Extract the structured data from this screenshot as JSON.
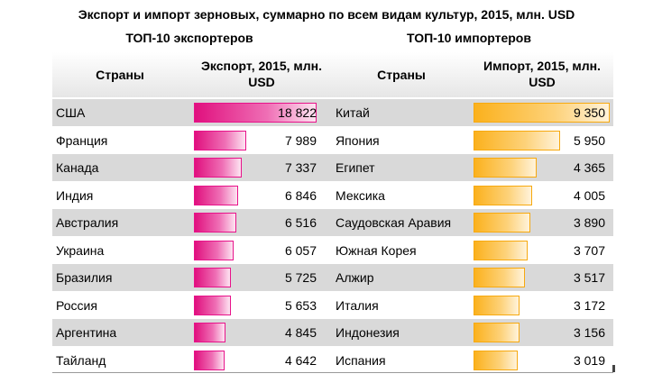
{
  "chart_data": {
    "type": "table",
    "title": "Экспорт и импорт зерновых, суммарно по всем видам культур, 2015, млн. USD",
    "exporters": {
      "subtitle": "ТОП-10 экспортеров",
      "col_country": "Страны",
      "col_value": "Экспорт, 2015, млн. USD",
      "color": "#e0107e",
      "rows": [
        {
          "country": "США",
          "value": 18822,
          "label": "18 822"
        },
        {
          "country": "Франция",
          "value": 7989,
          "label": "7 989"
        },
        {
          "country": "Канада",
          "value": 7337,
          "label": "7 337"
        },
        {
          "country": "Индия",
          "value": 6846,
          "label": "6 846"
        },
        {
          "country": "Австралия",
          "value": 6516,
          "label": "6 516"
        },
        {
          "country": "Украина",
          "value": 6057,
          "label": "6 057"
        },
        {
          "country": "Бразилия",
          "value": 5725,
          "label": "5 725"
        },
        {
          "country": "Россия",
          "value": 5653,
          "label": "5 653"
        },
        {
          "country": "Аргентина",
          "value": 4845,
          "label": "4 845"
        },
        {
          "country": "Тайланд",
          "value": 4642,
          "label": "4 642"
        }
      ]
    },
    "importers": {
      "subtitle": "ТОП-10 импортеров",
      "col_country": "Страны",
      "col_value": "Импорт, 2015, млн. USD",
      "color": "#fbb11d",
      "rows": [
        {
          "country": "Китай",
          "value": 9350,
          "label": "9 350"
        },
        {
          "country": "Япония",
          "value": 5950,
          "label": "5 950"
        },
        {
          "country": "Египет",
          "value": 4365,
          "label": "4 365"
        },
        {
          "country": "Мексика",
          "value": 4005,
          "label": "4 005"
        },
        {
          "country": "Саудовская Аравия",
          "value": 3890,
          "label": "3 890"
        },
        {
          "country": "Южная Корея",
          "value": 3707,
          "label": "3 707"
        },
        {
          "country": "Алжир",
          "value": 3517,
          "label": "3 517"
        },
        {
          "country": "Италия",
          "value": 3172,
          "label": "3 172"
        },
        {
          "country": "Индонезия",
          "value": 3156,
          "label": "3 156"
        },
        {
          "country": "Испания",
          "value": 3019,
          "label": "3 019"
        }
      ]
    }
  }
}
